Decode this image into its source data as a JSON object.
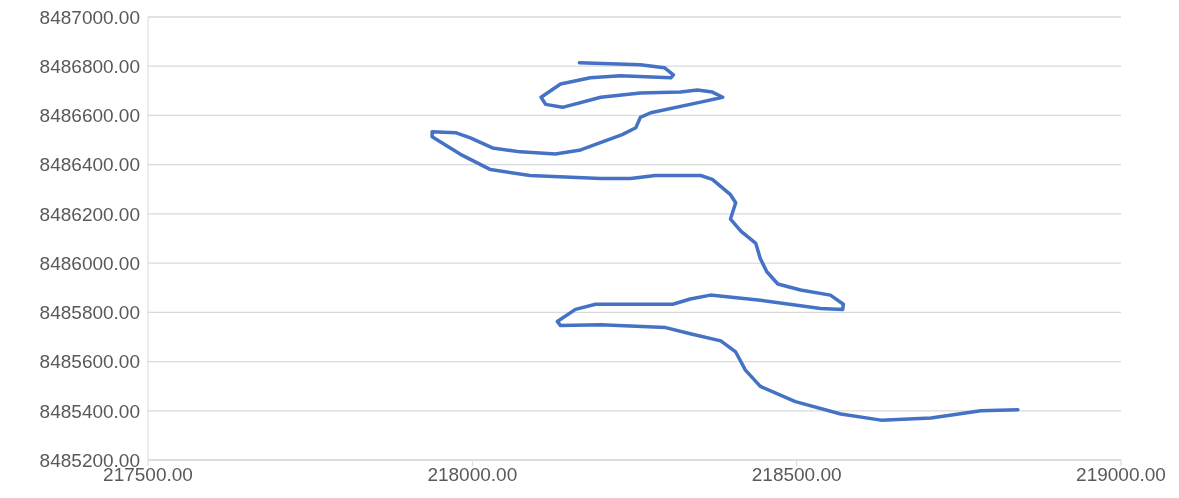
{
  "chart_data": {
    "type": "line",
    "x": [
      218165,
      218259,
      218296,
      218310,
      218306,
      218228,
      218182,
      218136,
      218106,
      218113,
      218139,
      218198,
      218259,
      218321,
      218347,
      218370,
      218386,
      218352,
      218275,
      218259,
      218252,
      218231,
      218167,
      218128,
      218074,
      218031,
      217997,
      217974,
      217938,
      217938,
      217981,
      218028,
      218089,
      218198,
      218244,
      218282,
      218352,
      218370,
      218398,
      218406,
      218398,
      218414,
      218437,
      218444,
      218454,
      218471,
      218506,
      218552,
      218572,
      218571,
      218537,
      218444,
      218367,
      218336,
      218309,
      218259,
      218190,
      218159,
      218131,
      218136,
      218198,
      218298,
      218336,
      218383,
      218406,
      218421,
      218444,
      218498,
      218568,
      218630,
      218707,
      218784,
      218841
    ],
    "series": [
      {
        "color": "#4472c4",
        "values": [
          8486814,
          8486806,
          8486794,
          8486765,
          8486753,
          8486761,
          8486753,
          8486728,
          8486674,
          8486645,
          8486633,
          8486674,
          8486691,
          8486695,
          8486703,
          8486695,
          8486674,
          8486654,
          8486611,
          8486592,
          8486550,
          8486522,
          8486460,
          8486443,
          8486452,
          8486468,
          8486509,
          8486530,
          8486534,
          8486513,
          8486443,
          8486380,
          8486356,
          8486344,
          8486344,
          8486356,
          8486356,
          8486340,
          8486278,
          8486245,
          8486179,
          8486130,
          8486080,
          8486018,
          8485965,
          8485915,
          8485891,
          8485870,
          8485833,
          8485812,
          8485816,
          8485849,
          8485870,
          8485854,
          8485833,
          8485833,
          8485833,
          8485812,
          8485763,
          8485746,
          8485750,
          8485738,
          8485713,
          8485684,
          8485639,
          8485565,
          8485499,
          8485437,
          8485387,
          8485362,
          8485371,
          8485400,
          8485404
        ]
      }
    ],
    "xlim": [
      217500,
      219000
    ],
    "xticks": [
      {
        "value": 217500,
        "label": "217500.00"
      },
      {
        "value": 218000,
        "label": "218000.00"
      },
      {
        "value": 218500,
        "label": "218500.00"
      },
      {
        "value": 219000,
        "label": "219000.00"
      }
    ],
    "ylim": [
      8485200,
      8487000
    ],
    "yticks": [
      {
        "value": 8485200,
        "label": "8485200.00"
      },
      {
        "value": 8485400,
        "label": "8485400.00"
      },
      {
        "value": 8485600,
        "label": "8485600.00"
      },
      {
        "value": 8485800,
        "label": "8485800.00"
      },
      {
        "value": 8486000,
        "label": "8486000.00"
      },
      {
        "value": 8486200,
        "label": "8486200.00"
      },
      {
        "value": 8486400,
        "label": "8486400.00"
      },
      {
        "value": 8486600,
        "label": "8486600.00"
      },
      {
        "value": 8486800,
        "label": "8486800.00"
      },
      {
        "value": 8487000,
        "label": "8487000.00"
      }
    ],
    "grid": "y",
    "marker": "none",
    "line_style": "solid"
  }
}
